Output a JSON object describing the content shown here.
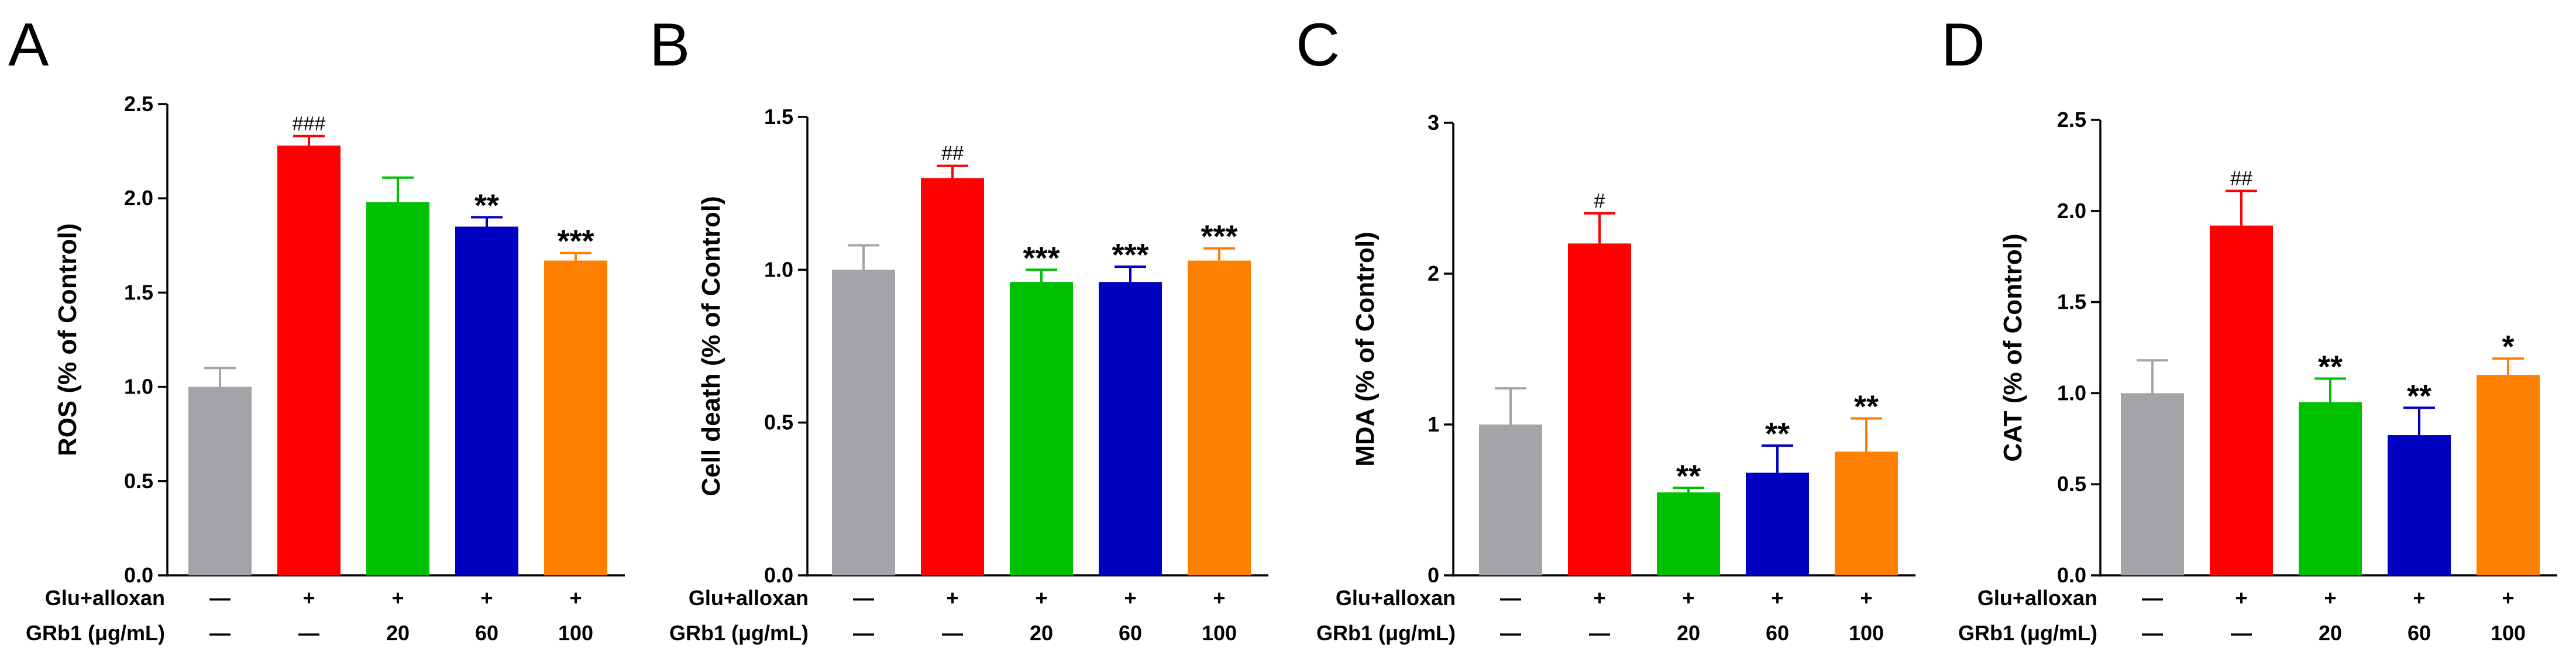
{
  "colors": {
    "control": "#a4a4a8",
    "model": "#ff0000",
    "grb20": "#00c000",
    "grb60": "#0000c0",
    "grb100": "#ff8000",
    "axis": "#000000"
  },
  "row_labels": {
    "glu": "Glu+alloxan",
    "grb": "GRb1 (μg/mL)"
  },
  "conditions": {
    "glu": [
      "—",
      "+",
      "+",
      "+",
      "+"
    ],
    "grb": [
      "—",
      "—",
      "20",
      "60",
      "100"
    ]
  },
  "chart_data": [
    {
      "type": "bar",
      "panel": "A",
      "ylabel": "ROS (% of Control)",
      "ylim": [
        0,
        2.5
      ],
      "yticks": [
        "0.0",
        "0.5",
        "1.0",
        "1.5",
        "2.0",
        "2.5"
      ],
      "values": [
        1.0,
        2.28,
        1.98,
        1.85,
        1.67
      ],
      "errors": [
        0.1,
        0.05,
        0.13,
        0.05,
        0.04
      ],
      "annotations": [
        "",
        "###",
        "",
        "**",
        "***"
      ]
    },
    {
      "type": "bar",
      "panel": "B",
      "ylabel": "Cell death (% of Control)",
      "ylim": [
        0,
        1.5
      ],
      "yticks": [
        "0.0",
        "0.5",
        "1.0",
        "1.5"
      ],
      "values": [
        1.0,
        1.3,
        0.96,
        0.96,
        1.03
      ],
      "errors": [
        0.08,
        0.04,
        0.04,
        0.05,
        0.04
      ],
      "annotations": [
        "",
        "##",
        "***",
        "***",
        "***"
      ]
    },
    {
      "type": "bar",
      "panel": "C",
      "ylabel": "MDA (% of Control)",
      "ylim": [
        0,
        3
      ],
      "yticks": [
        "0",
        "1",
        "2",
        "3"
      ],
      "values": [
        1.0,
        2.2,
        0.55,
        0.68,
        0.82
      ],
      "errors": [
        0.24,
        0.2,
        0.03,
        0.18,
        0.22
      ],
      "annotations": [
        "",
        "#",
        "**",
        "**",
        "**"
      ]
    },
    {
      "type": "bar",
      "panel": "D",
      "ylabel": "CAT (% of Control)",
      "ylim": [
        0,
        2.5
      ],
      "yticks": [
        "0.0",
        "0.5",
        "1.0",
        "1.5",
        "2.0",
        "2.5"
      ],
      "values": [
        1.0,
        1.92,
        0.95,
        0.77,
        1.1
      ],
      "errors": [
        0.18,
        0.19,
        0.13,
        0.15,
        0.09
      ],
      "annotations": [
        "",
        "##",
        "**",
        "**",
        "*"
      ]
    }
  ]
}
